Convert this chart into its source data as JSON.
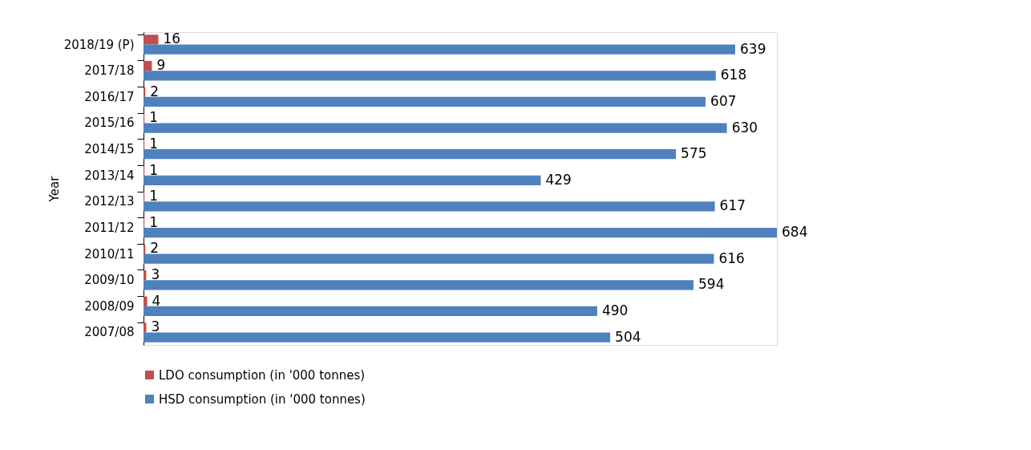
{
  "chart_data": {
    "type": "bar",
    "orientation": "horizontal",
    "ylabel": "Year",
    "categories": [
      "2018/19 (P)",
      "2017/18",
      "2016/17",
      "2015/16",
      "2014/15",
      "2013/14",
      "2012/13",
      "2011/12",
      "2010/11",
      "2009/10",
      "2008/09",
      "2007/08"
    ],
    "series": [
      {
        "name": "LDO consumption (in '000 tonnes)",
        "color": "#c0504d",
        "values": [
          16,
          9,
          2,
          1,
          1,
          1,
          1,
          1,
          2,
          3,
          4,
          3
        ]
      },
      {
        "name": "HSD consumption (in '000 tonnes)",
        "color": "#4f81bd",
        "values": [
          639,
          618,
          607,
          630,
          575,
          429,
          617,
          684,
          616,
          594,
          490,
          504
        ]
      }
    ],
    "data_labels": true,
    "legend": "bottom",
    "grid": false,
    "tick_labels": "y"
  }
}
